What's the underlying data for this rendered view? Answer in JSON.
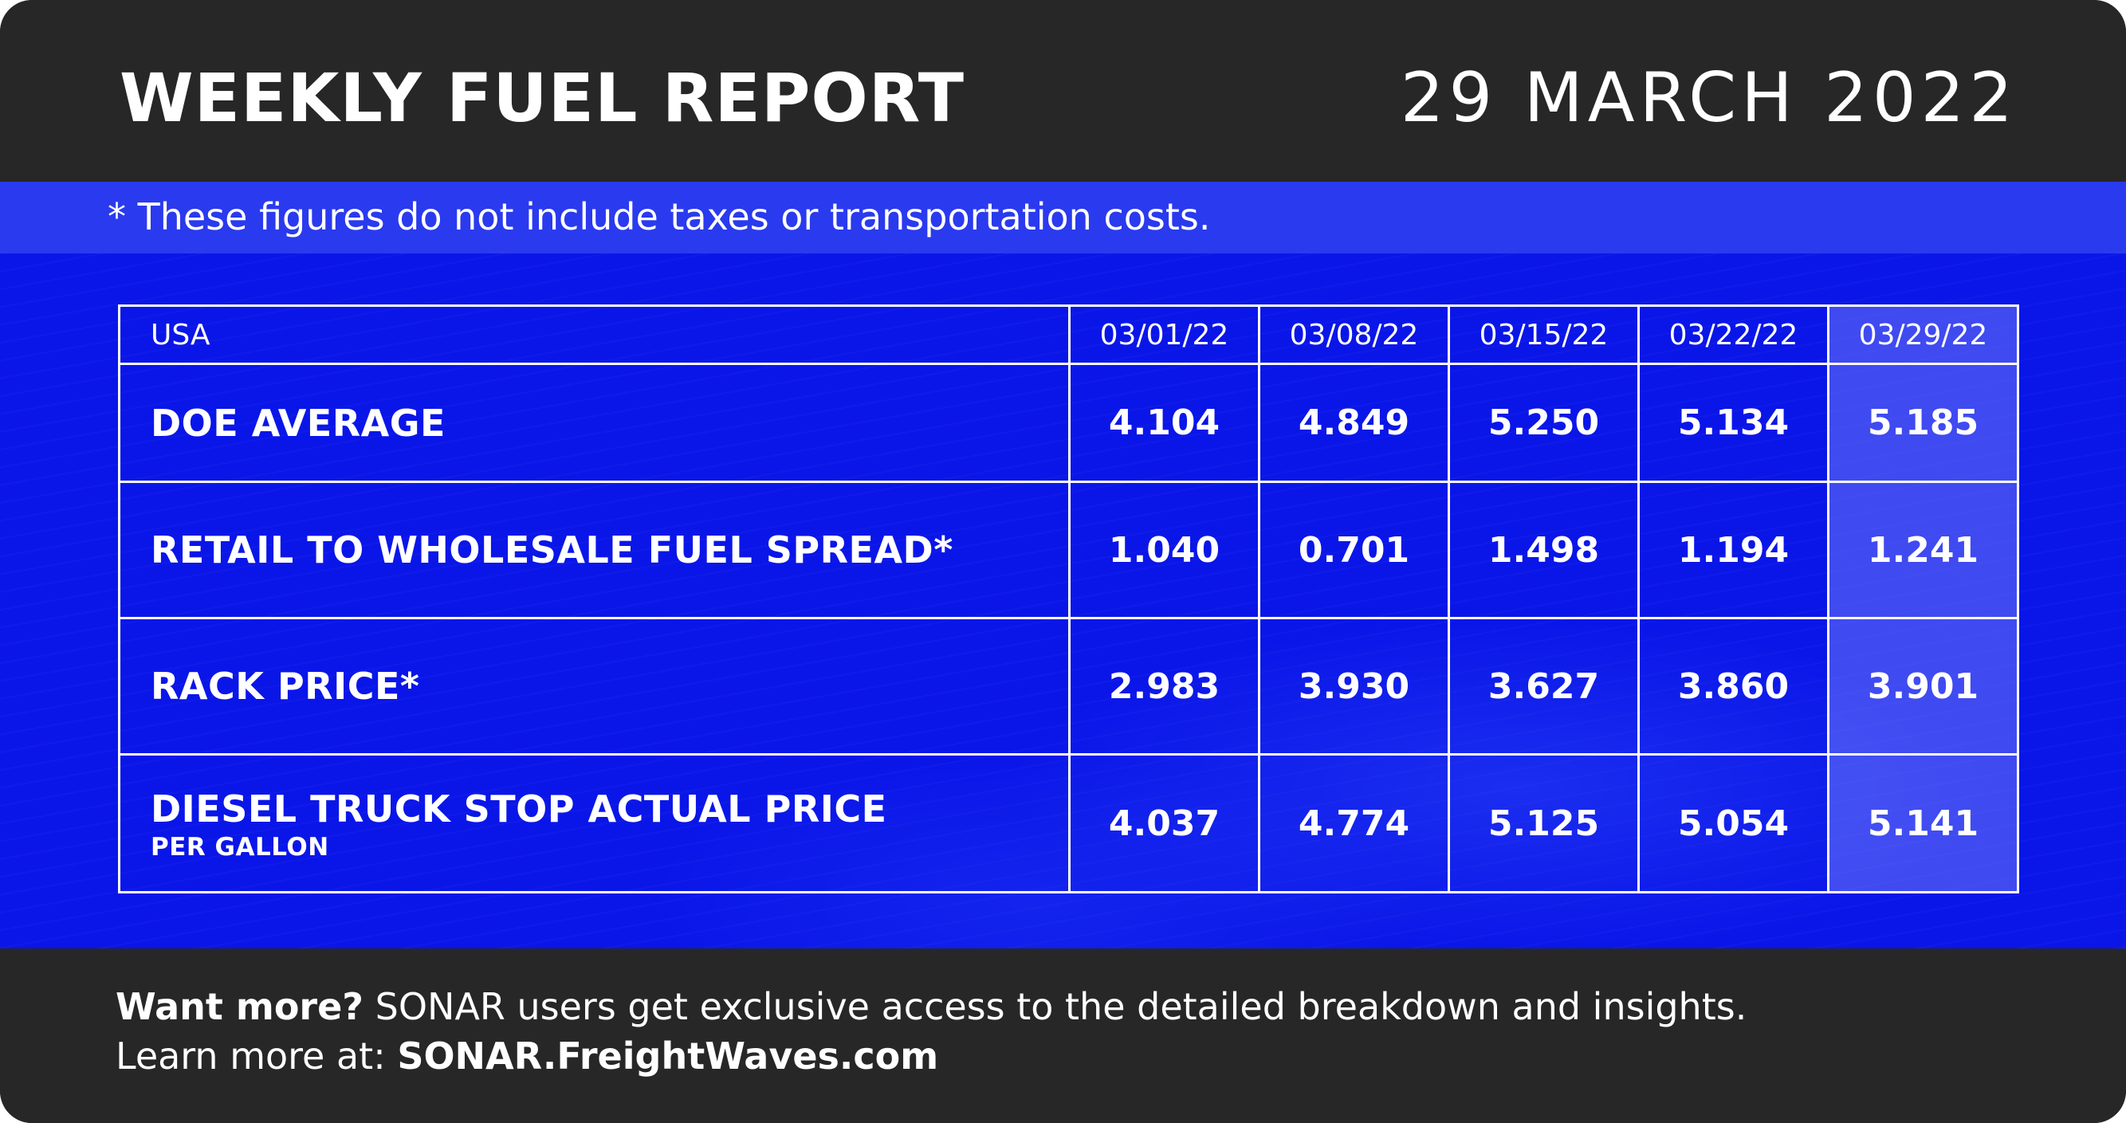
{
  "header": {
    "title": "WEEKLY FUEL REPORT",
    "date": "29 MARCH 2022"
  },
  "note": "* These figures do not include taxes or transportation costs.",
  "table": {
    "corner_label": "USA",
    "columns": [
      "03/01/22",
      "03/08/22",
      "03/15/22",
      "03/22/22",
      "03/29/22"
    ],
    "highlight_column": "03/29/22",
    "rows": [
      {
        "label": "DOE AVERAGE",
        "sublabel": "",
        "values": [
          "4.104",
          "4.849",
          "5.250",
          "5.134",
          "5.185"
        ]
      },
      {
        "label": "RETAIL TO WHOLESALE FUEL SPREAD*",
        "sublabel": "",
        "values": [
          "1.040",
          "0.701",
          "1.498",
          "1.194",
          "1.241"
        ]
      },
      {
        "label": "RACK PRICE*",
        "sublabel": "",
        "values": [
          "2.983",
          "3.930",
          "3.627",
          "3.860",
          "3.901"
        ]
      },
      {
        "label": "DIESEL TRUCK STOP ACTUAL PRICE",
        "sublabel": "PER GALLON",
        "values": [
          "4.037",
          "4.774",
          "5.125",
          "5.054",
          "5.141"
        ]
      }
    ]
  },
  "footer": {
    "lead_bold": "Want more?",
    "lead_text": " SONAR users get exclusive access to the detailed breakdown and insights.",
    "learn_text": "Learn more at: ",
    "link_text": "SONAR.FreightWaves.com"
  },
  "colors": {
    "dark_background": "#272727",
    "blue_background": "#0a16e8",
    "note_strip": "#2a3aee",
    "text": "#ffffff"
  }
}
